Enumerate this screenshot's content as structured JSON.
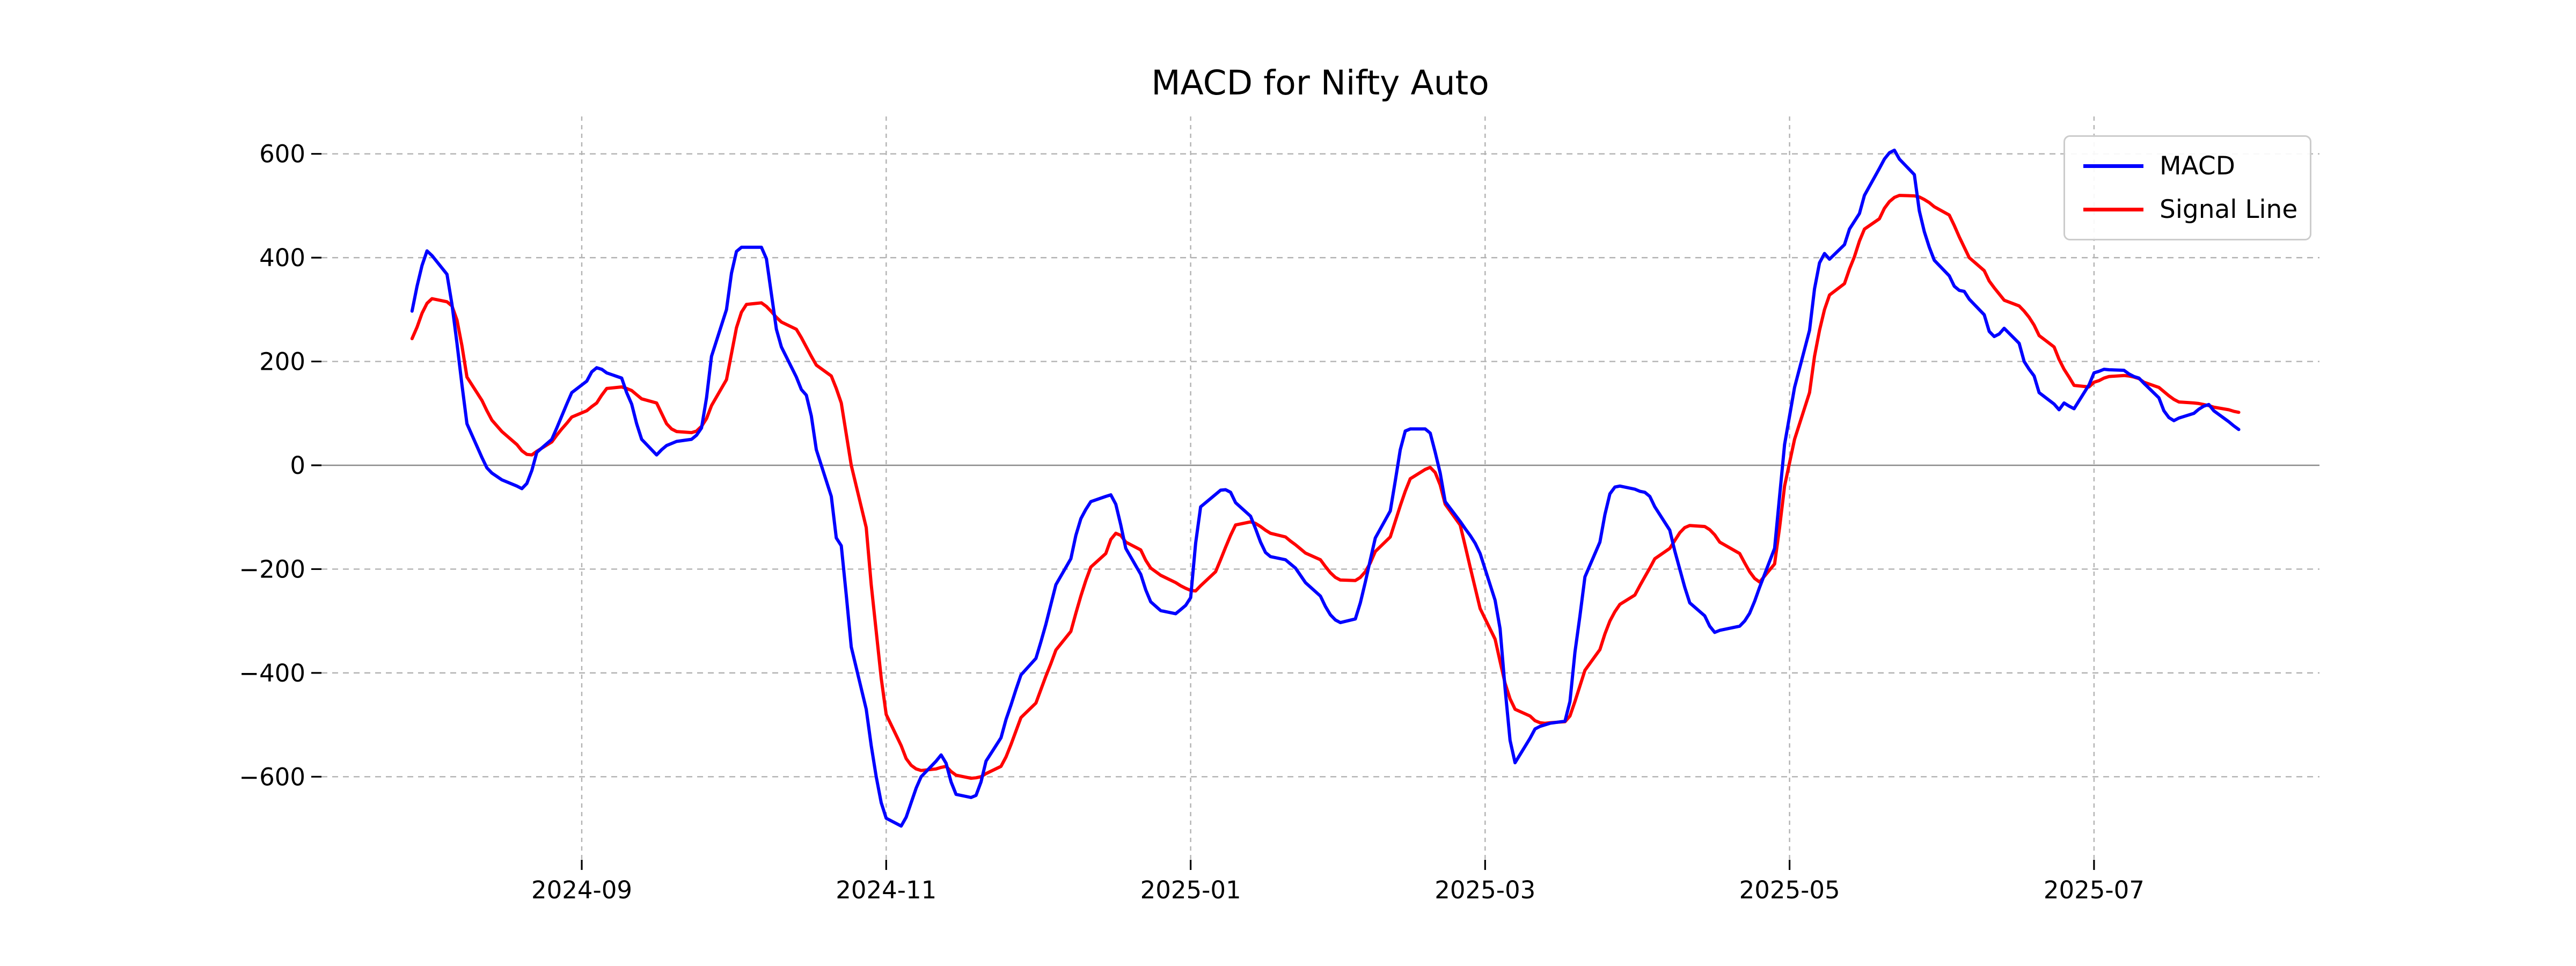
{
  "title": "MACD for Nifty Auto",
  "legend": {
    "items": [
      {
        "label": "MACD",
        "color": "#0000ff"
      },
      {
        "label": "Signal Line",
        "color": "#ff0000"
      }
    ]
  },
  "colors": {
    "macd_line": "#0000ff",
    "signal_line": "#ff0000",
    "grid": "#b2b2b2",
    "zero_line": "#8a8a8a",
    "tick": "#000000",
    "text": "#000000"
  },
  "chart_data": {
    "type": "line",
    "title": "MACD for Nifty Auto",
    "xlabel": "",
    "ylabel": "",
    "grid": true,
    "legend_position": "upper right",
    "ylim": [
      -756,
      657
    ],
    "yticks": {
      "values": [
        600,
        400,
        200,
        0,
        -200,
        -400,
        -600
      ],
      "labels": [
        "600",
        "400",
        "200",
        "0",
        "−200",
        "−400",
        "−600"
      ]
    },
    "xticks": {
      "dates": [
        "2024-09-01",
        "2024-11-01",
        "2025-01-01",
        "2025-03-01",
        "2025-05-01",
        "2025-07-01"
      ],
      "labels": [
        "2024-09",
        "2024-11",
        "2025-01",
        "2025-03",
        "2025-05",
        "2025-07"
      ]
    },
    "series_names": [
      "MACD",
      "Signal Line"
    ],
    "points": [
      [
        "2024-07-29",
        297,
        244
      ],
      [
        "2024-07-30",
        345,
        266
      ],
      [
        "2024-07-31",
        385,
        293
      ],
      [
        "2024-08-01",
        413,
        312
      ],
      [
        "2024-08-02",
        404,
        321
      ],
      [
        "2024-08-05",
        368,
        315
      ],
      [
        "2024-08-06",
        310,
        307
      ],
      [
        "2024-08-07",
        235,
        280
      ],
      [
        "2024-08-08",
        155,
        230
      ],
      [
        "2024-08-09",
        80,
        170
      ],
      [
        "2024-08-12",
        15,
        125
      ],
      [
        "2024-08-13",
        -5,
        105
      ],
      [
        "2024-08-14",
        -15,
        87
      ],
      [
        "2024-08-16",
        -28,
        65
      ],
      [
        "2024-08-19",
        -40,
        40
      ],
      [
        "2024-08-20",
        -45,
        28
      ],
      [
        "2024-08-21",
        -35,
        21
      ],
      [
        "2024-08-22",
        -10,
        20
      ],
      [
        "2024-08-23",
        25,
        27
      ],
      [
        "2024-08-26",
        50,
        45
      ],
      [
        "2024-08-27",
        72,
        58
      ],
      [
        "2024-08-28",
        95,
        70
      ],
      [
        "2024-08-29",
        118,
        81
      ],
      [
        "2024-08-30",
        140,
        93
      ],
      [
        "2024-09-02",
        162,
        105
      ],
      [
        "2024-09-03",
        180,
        113
      ],
      [
        "2024-09-04",
        188,
        120
      ],
      [
        "2024-09-05",
        185,
        135
      ],
      [
        "2024-09-06",
        178,
        148
      ],
      [
        "2024-09-09",
        168,
        151
      ],
      [
        "2024-09-10",
        140,
        148
      ],
      [
        "2024-09-11",
        118,
        144
      ],
      [
        "2024-09-12",
        80,
        136
      ],
      [
        "2024-09-13",
        50,
        128
      ],
      [
        "2024-09-16",
        20,
        120
      ],
      [
        "2024-09-17",
        30,
        100
      ],
      [
        "2024-09-18",
        38,
        80
      ],
      [
        "2024-09-19",
        42,
        70
      ],
      [
        "2024-09-20",
        46,
        65
      ],
      [
        "2024-09-23",
        50,
        63
      ],
      [
        "2024-09-24",
        58,
        66
      ],
      [
        "2024-09-25",
        72,
        75
      ],
      [
        "2024-09-26",
        130,
        90
      ],
      [
        "2024-09-27",
        210,
        115
      ],
      [
        "2024-09-30",
        300,
        165
      ],
      [
        "2024-10-01",
        370,
        215
      ],
      [
        "2024-10-02",
        412,
        265
      ],
      [
        "2024-10-03",
        420,
        295
      ],
      [
        "2024-10-04",
        420,
        310
      ],
      [
        "2024-10-07",
        420,
        313
      ],
      [
        "2024-10-08",
        398,
        306
      ],
      [
        "2024-10-09",
        330,
        296
      ],
      [
        "2024-10-10",
        262,
        285
      ],
      [
        "2024-10-11",
        228,
        276
      ],
      [
        "2024-10-14",
        170,
        262
      ],
      [
        "2024-10-15",
        146,
        246
      ],
      [
        "2024-10-16",
        135,
        228
      ],
      [
        "2024-10-17",
        95,
        210
      ],
      [
        "2024-10-18",
        30,
        193
      ],
      [
        "2024-10-21",
        -60,
        172
      ],
      [
        "2024-10-22",
        -140,
        148
      ],
      [
        "2024-10-23",
        -155,
        120
      ],
      [
        "2024-10-24",
        -250,
        60
      ],
      [
        "2024-10-25",
        -350,
        0
      ],
      [
        "2024-10-28",
        -470,
        -120
      ],
      [
        "2024-10-29",
        -540,
        -230
      ],
      [
        "2024-10-30",
        -600,
        -320
      ],
      [
        "2024-10-31",
        -650,
        -410
      ],
      [
        "2024-11-01",
        -680,
        -480
      ],
      [
        "2024-11-04",
        -695,
        -540
      ],
      [
        "2024-11-05",
        -678,
        -565
      ],
      [
        "2024-11-06",
        -650,
        -578
      ],
      [
        "2024-11-07",
        -622,
        -585
      ],
      [
        "2024-11-08",
        -600,
        -588
      ],
      [
        "2024-11-11",
        -570,
        -585
      ],
      [
        "2024-11-12",
        -558,
        -582
      ],
      [
        "2024-11-13",
        -574,
        -580
      ],
      [
        "2024-11-14",
        -610,
        -590
      ],
      [
        "2024-11-15",
        -634,
        -597
      ],
      [
        "2024-11-18",
        -640,
        -603
      ],
      [
        "2024-11-19",
        -636,
        -602
      ],
      [
        "2024-11-20",
        -610,
        -600
      ],
      [
        "2024-11-21",
        -570,
        -594
      ],
      [
        "2024-11-24",
        -525,
        -580
      ],
      [
        "2024-11-25",
        -490,
        -562
      ],
      [
        "2024-11-26",
        -462,
        -538
      ],
      [
        "2024-11-27",
        -432,
        -512
      ],
      [
        "2024-11-28",
        -404,
        -486
      ],
      [
        "2024-12-01",
        -372,
        -458
      ],
      [
        "2024-12-02",
        -340,
        -432
      ],
      [
        "2024-12-03",
        -306,
        -406
      ],
      [
        "2024-12-04",
        -268,
        -382
      ],
      [
        "2024-12-05",
        -230,
        -356
      ],
      [
        "2024-12-08",
        -180,
        -320
      ],
      [
        "2024-12-09",
        -135,
        -285
      ],
      [
        "2024-12-10",
        -103,
        -252
      ],
      [
        "2024-12-11",
        -85,
        -222
      ],
      [
        "2024-12-12",
        -70,
        -196
      ],
      [
        "2024-12-15",
        -60,
        -170
      ],
      [
        "2024-12-16",
        -57,
        -143
      ],
      [
        "2024-12-17",
        -75,
        -131
      ],
      [
        "2024-12-18",
        -115,
        -135
      ],
      [
        "2024-12-19",
        -160,
        -148
      ],
      [
        "2024-12-22",
        -210,
        -163
      ],
      [
        "2024-12-23",
        -240,
        -183
      ],
      [
        "2024-12-24",
        -263,
        -198
      ],
      [
        "2024-12-26",
        -280,
        -212
      ],
      [
        "2024-12-29",
        -286,
        -226
      ],
      [
        "2024-12-30",
        -278,
        -232
      ],
      [
        "2024-12-31",
        -270,
        -237
      ],
      [
        "2025-01-01",
        -255,
        -241
      ],
      [
        "2025-01-02",
        -150,
        -242
      ],
      [
        "2025-01-03",
        -80,
        -232
      ],
      [
        "2025-01-06",
        -56,
        -205
      ],
      [
        "2025-01-07",
        -48,
        -182
      ],
      [
        "2025-01-08",
        -47,
        -158
      ],
      [
        "2025-01-09",
        -52,
        -135
      ],
      [
        "2025-01-10",
        -72,
        -115
      ],
      [
        "2025-01-13",
        -98,
        -109
      ],
      [
        "2025-01-14",
        -122,
        -112
      ],
      [
        "2025-01-15",
        -148,
        -118
      ],
      [
        "2025-01-16",
        -168,
        -125
      ],
      [
        "2025-01-17",
        -176,
        -131
      ],
      [
        "2025-01-20",
        -182,
        -138
      ],
      [
        "2025-01-21",
        -190,
        -146
      ],
      [
        "2025-01-22",
        -198,
        -153
      ],
      [
        "2025-01-23",
        -212,
        -161
      ],
      [
        "2025-01-24",
        -226,
        -169
      ],
      [
        "2025-01-27",
        -252,
        -182
      ],
      [
        "2025-01-28",
        -272,
        -195
      ],
      [
        "2025-01-29",
        -288,
        -207
      ],
      [
        "2025-01-30",
        -298,
        -216
      ],
      [
        "2025-01-31",
        -303,
        -221
      ],
      [
        "2025-02-03",
        -296,
        -222
      ],
      [
        "2025-02-04",
        -265,
        -216
      ],
      [
        "2025-02-05",
        -225,
        -205
      ],
      [
        "2025-02-06",
        -182,
        -188
      ],
      [
        "2025-02-07",
        -140,
        -166
      ],
      [
        "2025-02-10",
        -88,
        -138
      ],
      [
        "2025-02-11",
        -30,
        -108
      ],
      [
        "2025-02-12",
        30,
        -78
      ],
      [
        "2025-02-13",
        66,
        -50
      ],
      [
        "2025-02-14",
        70,
        -26
      ],
      [
        "2025-02-17",
        70,
        -8
      ],
      [
        "2025-02-18",
        62,
        -4
      ],
      [
        "2025-02-19",
        25,
        -14
      ],
      [
        "2025-02-20",
        -15,
        -38
      ],
      [
        "2025-02-21",
        -70,
        -75
      ],
      [
        "2025-02-24",
        -108,
        -115
      ],
      [
        "2025-02-25",
        -122,
        -155
      ],
      [
        "2025-02-26",
        -135,
        -196
      ],
      [
        "2025-02-27",
        -150,
        -236
      ],
      [
        "2025-02-28",
        -170,
        -276
      ],
      [
        "2025-03-03",
        -260,
        -335
      ],
      [
        "2025-03-04",
        -315,
        -378
      ],
      [
        "2025-03-05",
        -430,
        -420
      ],
      [
        "2025-03-06",
        -530,
        -450
      ],
      [
        "2025-03-07",
        -573,
        -470
      ],
      [
        "2025-03-10",
        -526,
        -483
      ],
      [
        "2025-03-11",
        -508,
        -492
      ],
      [
        "2025-03-12",
        -503,
        -496
      ],
      [
        "2025-03-13",
        -500,
        -497
      ],
      [
        "2025-03-14",
        -497,
        -496
      ],
      [
        "2025-03-17",
        -493,
        -494
      ],
      [
        "2025-03-18",
        -455,
        -483
      ],
      [
        "2025-03-19",
        -360,
        -455
      ],
      [
        "2025-03-20",
        -290,
        -425
      ],
      [
        "2025-03-21",
        -215,
        -395
      ],
      [
        "2025-03-24",
        -148,
        -355
      ],
      [
        "2025-03-25",
        -95,
        -325
      ],
      [
        "2025-03-26",
        -55,
        -300
      ],
      [
        "2025-03-27",
        -42,
        -282
      ],
      [
        "2025-03-28",
        -40,
        -268
      ],
      [
        "2025-03-31",
        -46,
        -250
      ],
      [
        "2025-04-01",
        -50,
        -232
      ],
      [
        "2025-04-02",
        -52,
        -215
      ],
      [
        "2025-04-03",
        -60,
        -198
      ],
      [
        "2025-04-04",
        -80,
        -180
      ],
      [
        "2025-04-07",
        -125,
        -160
      ],
      [
        "2025-04-08",
        -165,
        -145
      ],
      [
        "2025-04-09",
        -200,
        -130
      ],
      [
        "2025-04-10",
        -235,
        -120
      ],
      [
        "2025-04-11",
        -265,
        -116
      ],
      [
        "2025-04-14",
        -290,
        -118
      ],
      [
        "2025-04-15",
        -310,
        -124
      ],
      [
        "2025-04-16",
        -322,
        -134
      ],
      [
        "2025-04-17",
        -318,
        -148
      ],
      [
        "2025-04-21",
        -310,
        -170
      ],
      [
        "2025-04-22",
        -300,
        -188
      ],
      [
        "2025-04-23",
        -285,
        -205
      ],
      [
        "2025-04-24",
        -262,
        -218
      ],
      [
        "2025-04-25",
        -235,
        -225
      ],
      [
        "2025-04-28",
        -160,
        -190
      ],
      [
        "2025-04-29",
        -60,
        -120
      ],
      [
        "2025-04-30",
        40,
        -40
      ],
      [
        "2025-05-02",
        150,
        50
      ],
      [
        "2025-05-05",
        260,
        140
      ],
      [
        "2025-05-06",
        340,
        210
      ],
      [
        "2025-05-07",
        390,
        260
      ],
      [
        "2025-05-08",
        408,
        300
      ],
      [
        "2025-05-09",
        397,
        328
      ],
      [
        "2025-05-12",
        425,
        350
      ],
      [
        "2025-05-13",
        455,
        378
      ],
      [
        "2025-05-14",
        470,
        402
      ],
      [
        "2025-05-15",
        485,
        432
      ],
      [
        "2025-05-16",
        520,
        455
      ],
      [
        "2025-05-19",
        572,
        475
      ],
      [
        "2025-05-20",
        590,
        495
      ],
      [
        "2025-05-21",
        602,
        508
      ],
      [
        "2025-05-22",
        607,
        516
      ],
      [
        "2025-05-23",
        590,
        520
      ],
      [
        "2025-05-26",
        560,
        519
      ],
      [
        "2025-05-27",
        490,
        517
      ],
      [
        "2025-05-28",
        450,
        512
      ],
      [
        "2025-05-29",
        420,
        506
      ],
      [
        "2025-05-30",
        395,
        498
      ],
      [
        "2025-06-02",
        365,
        482
      ],
      [
        "2025-06-03",
        345,
        462
      ],
      [
        "2025-06-04",
        337,
        440
      ],
      [
        "2025-06-05",
        335,
        420
      ],
      [
        "2025-06-06",
        320,
        400
      ],
      [
        "2025-06-09",
        290,
        375
      ],
      [
        "2025-06-10",
        258,
        355
      ],
      [
        "2025-06-11",
        248,
        342
      ],
      [
        "2025-06-12",
        253,
        330
      ],
      [
        "2025-06-13",
        264,
        318
      ],
      [
        "2025-06-16",
        235,
        307
      ],
      [
        "2025-06-17",
        200,
        297
      ],
      [
        "2025-06-18",
        185,
        285
      ],
      [
        "2025-06-19",
        172,
        270
      ],
      [
        "2025-06-20",
        140,
        250
      ],
      [
        "2025-06-23",
        118,
        228
      ],
      [
        "2025-06-24",
        107,
        204
      ],
      [
        "2025-06-25",
        120,
        185
      ],
      [
        "2025-06-26",
        114,
        170
      ],
      [
        "2025-06-27",
        109,
        154
      ],
      [
        "2025-06-30",
        155,
        151
      ],
      [
        "2025-07-01",
        178,
        160
      ],
      [
        "2025-07-02",
        181,
        163
      ],
      [
        "2025-07-03",
        185,
        168
      ],
      [
        "2025-07-04",
        184,
        171
      ],
      [
        "2025-07-07",
        183,
        173
      ],
      [
        "2025-07-08",
        176,
        172
      ],
      [
        "2025-07-09",
        171,
        170
      ],
      [
        "2025-07-10",
        168,
        167
      ],
      [
        "2025-07-11",
        158,
        160
      ],
      [
        "2025-07-14",
        130,
        150
      ],
      [
        "2025-07-15",
        105,
        142
      ],
      [
        "2025-07-16",
        92,
        134
      ],
      [
        "2025-07-17",
        86,
        127
      ],
      [
        "2025-07-18",
        91,
        122
      ],
      [
        "2025-07-21",
        100,
        120
      ],
      [
        "2025-07-22",
        108,
        119
      ],
      [
        "2025-07-23",
        114,
        117
      ],
      [
        "2025-07-24",
        117,
        115
      ],
      [
        "2025-07-25",
        105,
        112
      ],
      [
        "2025-07-28",
        84,
        107
      ],
      [
        "2025-07-29",
        76,
        104
      ],
      [
        "2025-07-30",
        69,
        102
      ]
    ]
  }
}
